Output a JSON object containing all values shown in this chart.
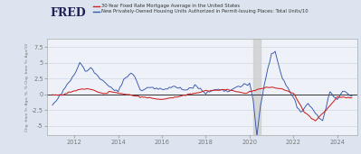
{
  "title_logo": "FRED",
  "legend_line1": "30-Year Fixed Rate Mortgage Average in the United States",
  "legend_line2": "New Privately-Owned Housing Units Authorized in Permit-Issuing Places: Total Units/10",
  "ylabel": "Chg. from Yr. Ago, %, % Chg. from Yr. Ago/10",
  "xlabel_ticks": [
    "2012",
    "2014",
    "2016",
    "2018",
    "2020",
    "2022",
    "2024"
  ],
  "yticks": [
    -5.0,
    -2.5,
    0.0,
    2.5,
    5.0,
    7.5
  ],
  "ylim": [
    -6.5,
    8.8
  ],
  "xlim_start": 2010.75,
  "xlim_end": 2024.92,
  "recession_shade_start": 2020.17,
  "recession_shade_end": 2020.5,
  "outer_bg_color": "#dce5ef",
  "plot_bg_color": "#eef2f8",
  "red_color": "#cc2222",
  "blue_color": "#3355aa",
  "zero_line_color": "#333333",
  "fred_logo_color": "#222255",
  "grid_color": "#c8d0dc",
  "tick_label_color": "#777777",
  "legend_text_color": "#333333"
}
